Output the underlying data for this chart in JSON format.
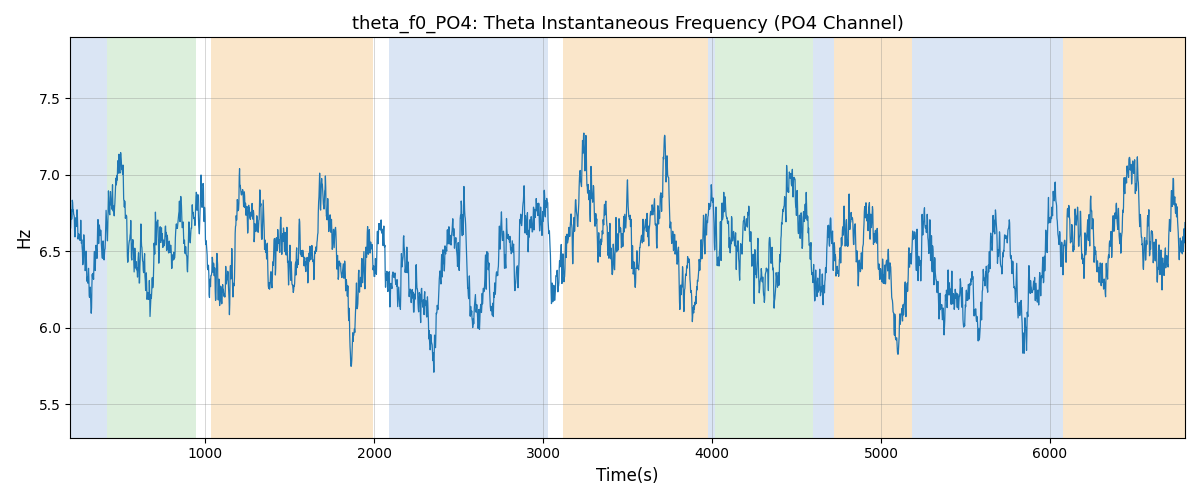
{
  "title": "theta_f0_PO4: Theta Instantaneous Frequency (PO4 Channel)",
  "xlabel": "Time(s)",
  "ylabel": "Hz",
  "xlim": [
    200,
    6800
  ],
  "ylim": [
    5.28,
    7.9
  ],
  "yticks": [
    5.5,
    6.0,
    6.5,
    7.0,
    7.5
  ],
  "figsize": [
    12,
    5
  ],
  "dpi": 100,
  "line_color": "#1f77b4",
  "line_width": 0.9,
  "bands": [
    {
      "xmin": 200,
      "xmax": 415,
      "color": "#aec6e8",
      "alpha": 0.45
    },
    {
      "xmin": 415,
      "xmax": 945,
      "color": "#b2ddb2",
      "alpha": 0.45
    },
    {
      "xmin": 1035,
      "xmax": 1990,
      "color": "#f5c98a",
      "alpha": 0.45
    },
    {
      "xmin": 2085,
      "xmax": 3030,
      "color": "#aec6e8",
      "alpha": 0.45
    },
    {
      "xmin": 3120,
      "xmax": 3975,
      "color": "#f5c98a",
      "alpha": 0.45
    },
    {
      "xmin": 3975,
      "xmax": 4015,
      "color": "#aec6e8",
      "alpha": 0.45
    },
    {
      "xmin": 4015,
      "xmax": 4600,
      "color": "#b2ddb2",
      "alpha": 0.45
    },
    {
      "xmin": 4600,
      "xmax": 4720,
      "color": "#aec6e8",
      "alpha": 0.45
    },
    {
      "xmin": 4720,
      "xmax": 5185,
      "color": "#f5c98a",
      "alpha": 0.45
    },
    {
      "xmin": 5185,
      "xmax": 6075,
      "color": "#aec6e8",
      "alpha": 0.45
    },
    {
      "xmin": 6075,
      "xmax": 6800,
      "color": "#f5c98a",
      "alpha": 0.45
    }
  ],
  "seed": 42,
  "n_points": 3300,
  "t_start": 200,
  "t_end": 6800,
  "base_freq": 6.5
}
